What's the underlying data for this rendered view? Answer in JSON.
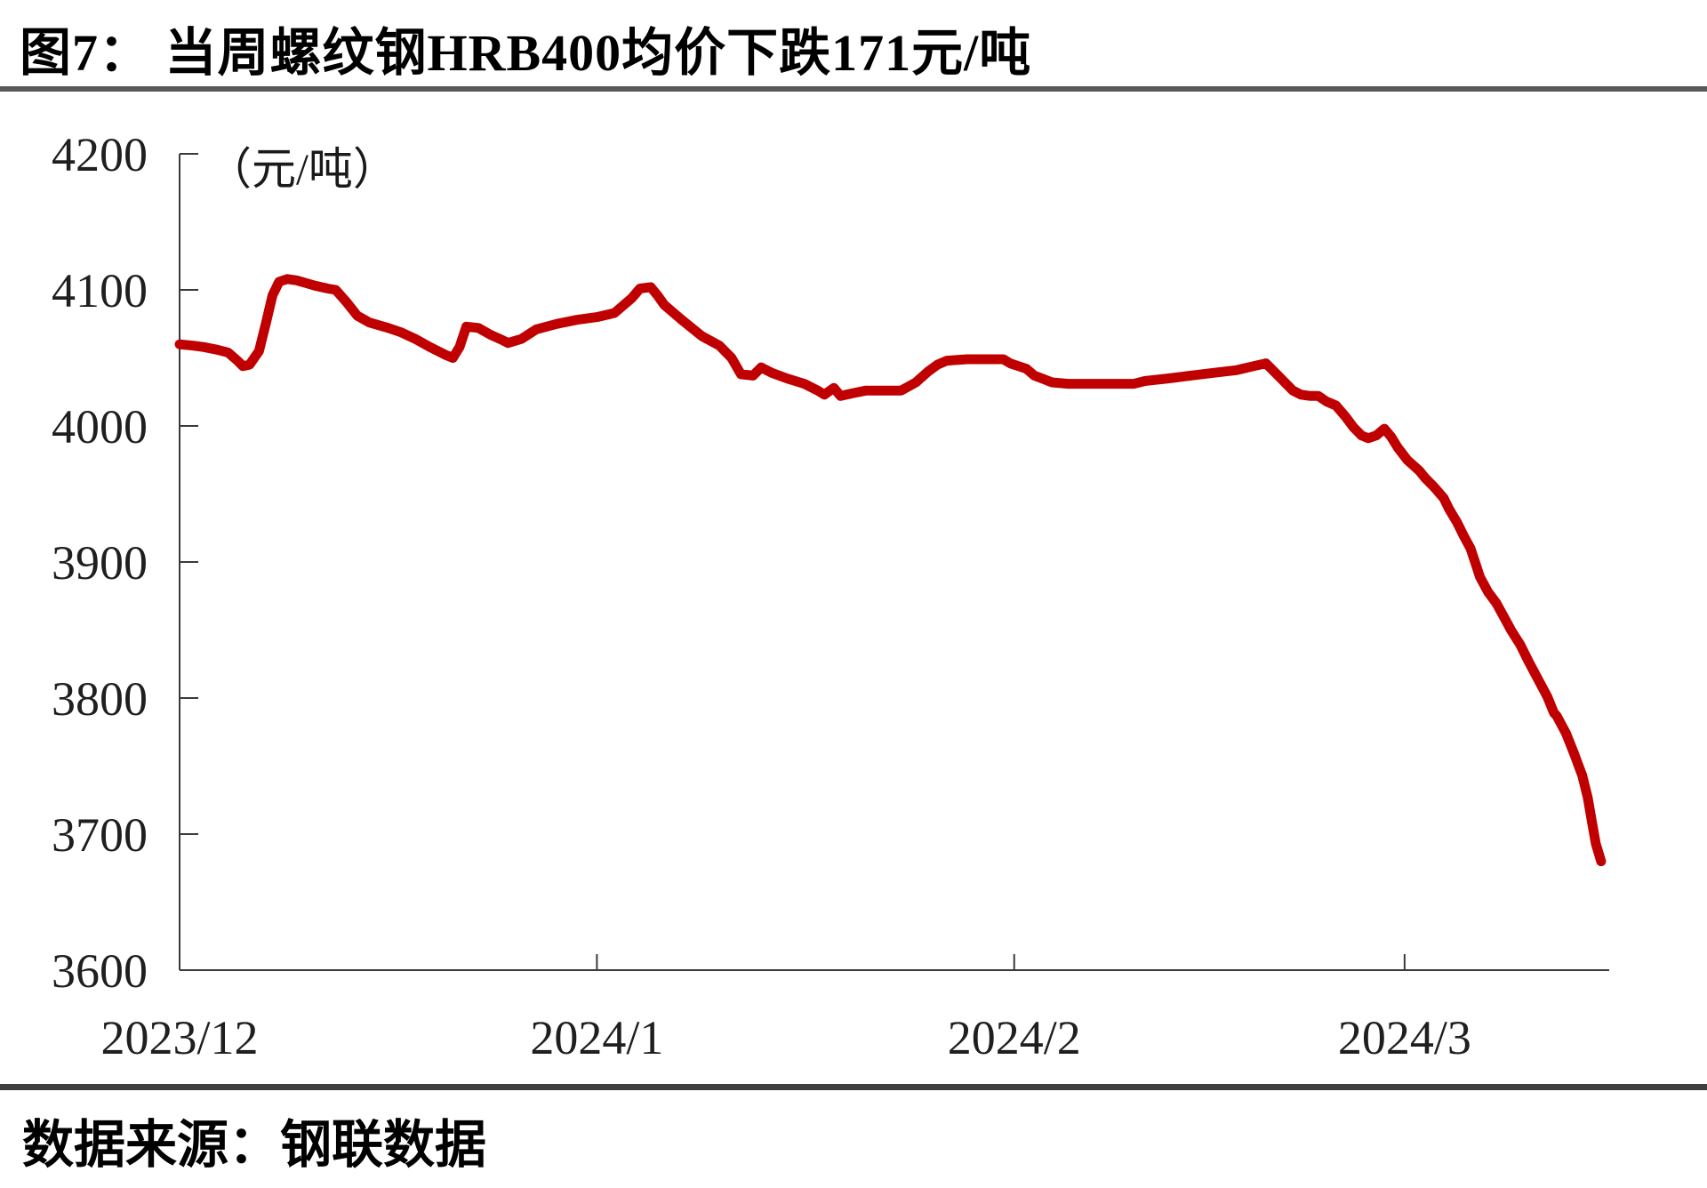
{
  "title": "图7：  当周螺纹钢HRB400均价下跌171元/吨",
  "source": "数据来源：钢联数据",
  "chart_data": {
    "type": "line",
    "title": "当周螺纹钢HRB400均价下跌171元/吨",
    "unit_label": "（元/吨）",
    "ylabel": "元/吨",
    "ylim": [
      3600,
      4200
    ],
    "yticks": [
      4200,
      4100,
      4000,
      3900,
      3800,
      3700,
      3600
    ],
    "xlim": [
      0,
      106.2
    ],
    "x_ticks": [
      {
        "label": "2023/12",
        "d": 0
      },
      {
        "label": "2024/1",
        "d": 31
      },
      {
        "label": "2024/2",
        "d": 62
      },
      {
        "label": "2024/3",
        "d": 91
      }
    ],
    "grid": false,
    "legend": "none",
    "series": [
      {
        "name": "螺纹钢HRB400均价",
        "color": "#c00000",
        "points": [
          [
            0,
            4060
          ],
          [
            1,
            4059
          ],
          [
            1.8,
            4058
          ],
          [
            2.8,
            4056
          ],
          [
            3.6,
            4054
          ],
          [
            4.3,
            4048
          ],
          [
            4.7,
            4044
          ],
          [
            5.2,
            4045
          ],
          [
            5.9,
            4055
          ],
          [
            6.4,
            4075
          ],
          [
            6.9,
            4096
          ],
          [
            7.4,
            4106
          ],
          [
            8,
            4108
          ],
          [
            8.7,
            4107
          ],
          [
            9.4,
            4105
          ],
          [
            10.1,
            4103
          ],
          [
            11,
            4101
          ],
          [
            11.6,
            4100
          ],
          [
            12.4,
            4091
          ],
          [
            13.2,
            4081
          ],
          [
            14.1,
            4076
          ],
          [
            15.5,
            4072
          ],
          [
            16.4,
            4069
          ],
          [
            17.5,
            4064
          ],
          [
            18.6,
            4058
          ],
          [
            19.8,
            4052
          ],
          [
            20.3,
            4050
          ],
          [
            20.8,
            4058
          ],
          [
            21.3,
            4073
          ],
          [
            22.2,
            4072
          ],
          [
            23.1,
            4067
          ],
          [
            24,
            4063
          ],
          [
            24.4,
            4061
          ],
          [
            25.4,
            4064
          ],
          [
            26.5,
            4071
          ],
          [
            28,
            4075
          ],
          [
            29.5,
            4078
          ],
          [
            31,
            4080
          ],
          [
            32.3,
            4083
          ],
          [
            33.6,
            4094
          ],
          [
            34.2,
            4101
          ],
          [
            35,
            4102
          ],
          [
            35.5,
            4096
          ],
          [
            36,
            4089
          ],
          [
            37.3,
            4078
          ],
          [
            38.8,
            4066
          ],
          [
            40.1,
            4059
          ],
          [
            41,
            4050
          ],
          [
            41.7,
            4038
          ],
          [
            42.6,
            4037
          ],
          [
            43.2,
            4043
          ],
          [
            44,
            4039
          ],
          [
            45.1,
            4035
          ],
          [
            46.4,
            4031
          ],
          [
            47.4,
            4026
          ],
          [
            47.9,
            4023
          ],
          [
            48.6,
            4028
          ],
          [
            49.1,
            4022
          ],
          [
            50,
            4024
          ],
          [
            51,
            4026
          ],
          [
            52.5,
            4026
          ],
          [
            53.6,
            4026
          ],
          [
            54.7,
            4032
          ],
          [
            55.6,
            4040
          ],
          [
            56.3,
            4045
          ],
          [
            57,
            4048
          ],
          [
            58.5,
            4049
          ],
          [
            60,
            4049
          ],
          [
            61.2,
            4049
          ],
          [
            61.7,
            4046
          ],
          [
            62.9,
            4042
          ],
          [
            63.5,
            4037
          ],
          [
            64.3,
            4034
          ],
          [
            64.8,
            4032
          ],
          [
            66,
            4031
          ],
          [
            68,
            4031
          ],
          [
            70,
            4031
          ],
          [
            70.9,
            4031
          ],
          [
            71.7,
            4033
          ],
          [
            73.5,
            4035
          ],
          [
            75.1,
            4037
          ],
          [
            76.8,
            4039
          ],
          [
            78.5,
            4041
          ],
          [
            79.8,
            4044
          ],
          [
            80.7,
            4046
          ],
          [
            81.4,
            4039
          ],
          [
            82.1,
            4032
          ],
          [
            82.7,
            4026
          ],
          [
            83.3,
            4023
          ],
          [
            84,
            4022
          ],
          [
            84.6,
            4022
          ],
          [
            85.2,
            4018
          ],
          [
            85.9,
            4015
          ],
          [
            86.6,
            4007
          ],
          [
            87.2,
            3999
          ],
          [
            87.8,
            3993
          ],
          [
            88.3,
            3991
          ],
          [
            88.9,
            3993
          ],
          [
            89.5,
            3998
          ],
          [
            90,
            3992
          ],
          [
            90.5,
            3984
          ],
          [
            91.2,
            3975
          ],
          [
            92.1,
            3967
          ],
          [
            92.5,
            3962
          ],
          [
            93.2,
            3955
          ],
          [
            93.9,
            3947
          ],
          [
            94.3,
            3939
          ],
          [
            94.9,
            3929
          ],
          [
            95.4,
            3919
          ],
          [
            95.9,
            3910
          ],
          [
            96.2,
            3901
          ],
          [
            96.6,
            3889
          ],
          [
            97.2,
            3878
          ],
          [
            97.8,
            3870
          ],
          [
            98.3,
            3861
          ],
          [
            98.9,
            3850
          ],
          [
            99.6,
            3839
          ],
          [
            100.2,
            3827
          ],
          [
            100.9,
            3814
          ],
          [
            101.6,
            3801
          ],
          [
            102.1,
            3789
          ],
          [
            102.3,
            3787
          ],
          [
            103,
            3774
          ],
          [
            103.6,
            3759
          ],
          [
            104.2,
            3743
          ],
          [
            104.6,
            3727
          ],
          [
            104.9,
            3710
          ],
          [
            105.2,
            3693
          ],
          [
            105.6,
            3680
          ]
        ]
      }
    ]
  },
  "style": {
    "line_color": "#c00000",
    "axis_color": "#3a3a3a",
    "label_color": "#1f1f1f",
    "rule_color": "#595959"
  }
}
